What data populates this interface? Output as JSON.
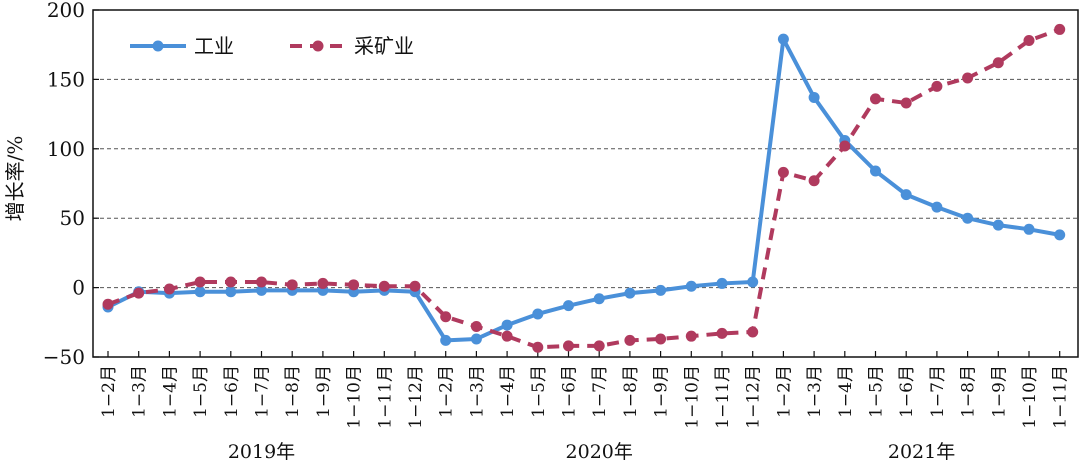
{
  "chart_data": {
    "type": "line",
    "ylabel": "增长率/%",
    "ylim": [
      -50,
      200
    ],
    "yticks": [
      -50,
      0,
      50,
      100,
      150,
      200
    ],
    "grid": "horizontal-dashed",
    "legend_position": "top-left",
    "categories": [
      "1−2月",
      "1−3月",
      "1−4月",
      "1−5月",
      "1−6月",
      "1−7月",
      "1−8月",
      "1−9月",
      "1−10月",
      "1−11月",
      "1−12月",
      "1−2月",
      "1−3月",
      "1−4月",
      "1−5月",
      "1−6月",
      "1−7月",
      "1−8月",
      "1−9月",
      "1−10月",
      "1−11月",
      "1−12月",
      "1−2月",
      "1−3月",
      "1−4月",
      "1−5月",
      "1−6月",
      "1−7月",
      "1−8月",
      "1−9月",
      "1−10月",
      "1−11月"
    ],
    "groups": [
      {
        "label": "2019年",
        "start": 0,
        "end": 10
      },
      {
        "label": "2020年",
        "start": 11,
        "end": 21
      },
      {
        "label": "2021年",
        "start": 22,
        "end": 31
      }
    ],
    "series": [
      {
        "name": "工业",
        "color": "#4a90d9",
        "style": "solid",
        "values": [
          -14,
          -3,
          -4,
          -3,
          -3,
          -2,
          -2,
          -2,
          -3,
          -2,
          -3,
          -38,
          -37,
          -27,
          -19,
          -13,
          -8,
          -4,
          -2,
          1,
          3,
          4,
          179,
          137,
          106,
          84,
          67,
          58,
          50,
          45,
          42,
          38
        ]
      },
      {
        "name": "采矿业",
        "color": "#b03a5e",
        "style": "dashed",
        "values": [
          -12,
          -4,
          -1,
          4,
          4,
          4,
          2,
          3,
          2,
          1,
          1,
          -21,
          -28,
          -35,
          -43,
          -42,
          -42,
          -38,
          -37,
          -35,
          -33,
          -32,
          83,
          77,
          102,
          136,
          133,
          145,
          151,
          162,
          178,
          186
        ]
      }
    ]
  }
}
